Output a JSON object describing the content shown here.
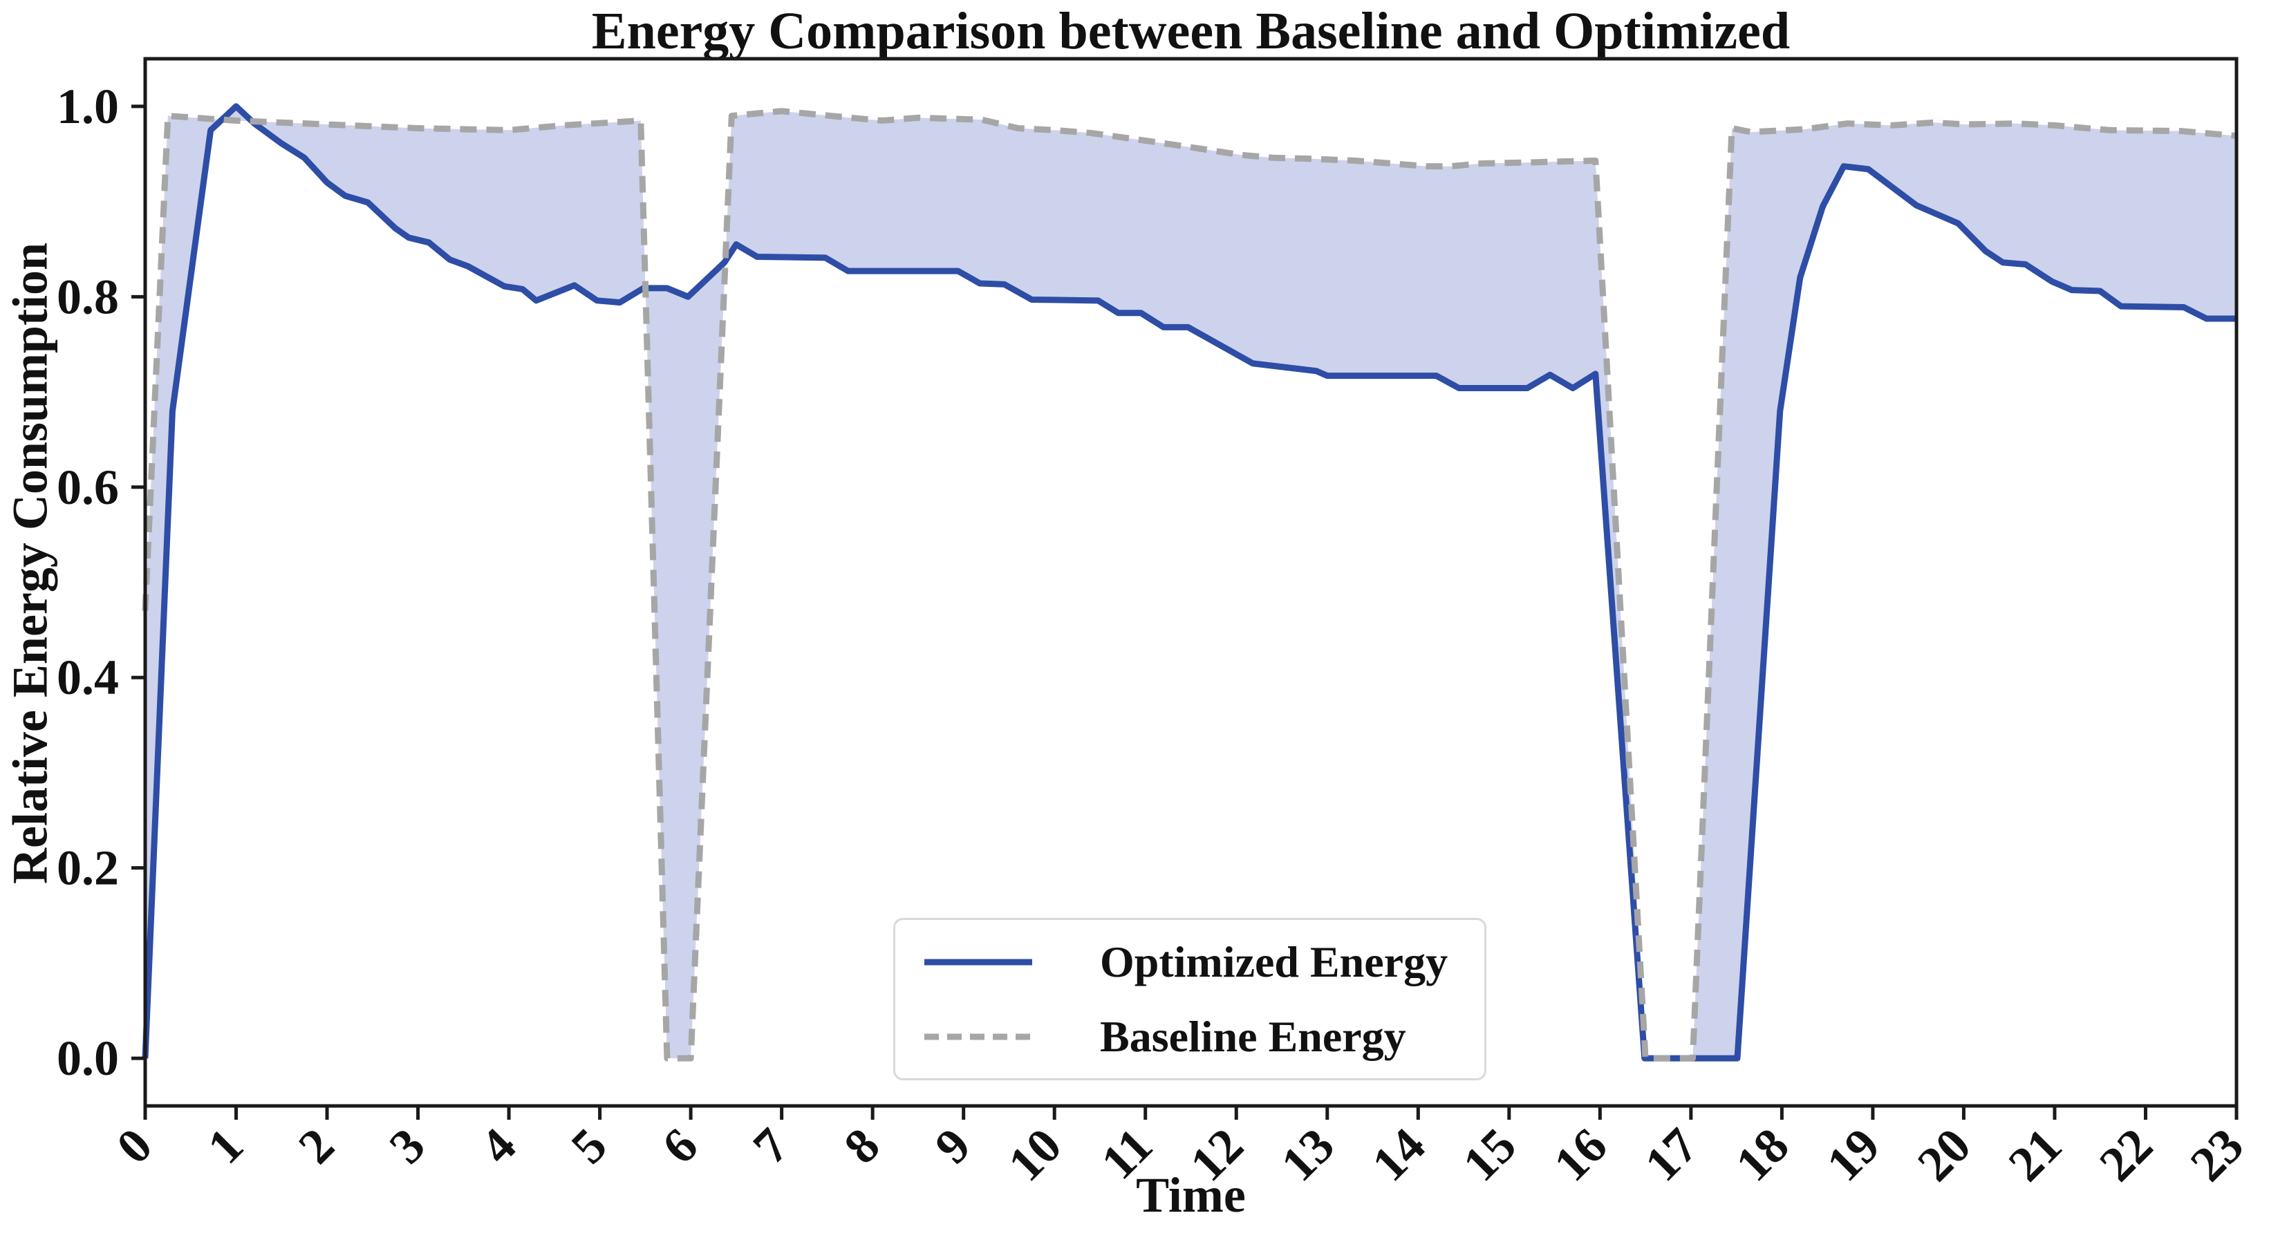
{
  "chart_data": {
    "type": "line",
    "title": "Energy Comparison between Baseline and Optimized",
    "xlabel": "Time",
    "ylabel": "Relative Energy Consumption",
    "xlim": [
      0,
      23
    ],
    "ylim": [
      -0.05,
      1.05
    ],
    "grid": false,
    "xticks": [
      0,
      1,
      2,
      3,
      4,
      5,
      6,
      7,
      8,
      9,
      10,
      11,
      12,
      13,
      14,
      15,
      16,
      17,
      18,
      19,
      20,
      21,
      22,
      23
    ],
    "xtick_labels": [
      "0",
      "1",
      "2",
      "3",
      "4",
      "5",
      "6",
      "7",
      "8",
      "9",
      "10",
      "11",
      "12",
      "13",
      "14",
      "15",
      "16",
      "17",
      "18",
      "19",
      "20",
      "21",
      "22",
      "23"
    ],
    "xtick_rotation_deg": 45,
    "yticks": [
      0.0,
      0.2,
      0.4,
      0.6,
      0.8,
      1.0
    ],
    "ytick_labels": [
      "0.0",
      "0.2",
      "0.4",
      "0.6",
      "0.8",
      "1.0"
    ],
    "legend_position": "lower center",
    "fill_between": {
      "between": [
        "Optimized Energy",
        "Baseline Energy"
      ],
      "color": "#cdd3ec"
    },
    "series": [
      {
        "name": "Optimized Energy",
        "style": "solid",
        "color": "#2e4da6",
        "points": [
          [
            0,
            0.0
          ],
          [
            0.3,
            0.68
          ],
          [
            0.72,
            0.975
          ],
          [
            1.0,
            1.0
          ],
          [
            1.2,
            0.982
          ],
          [
            1.5,
            0.961
          ],
          [
            1.75,
            0.946
          ],
          [
            2.0,
            0.92
          ],
          [
            2.2,
            0.906
          ],
          [
            2.45,
            0.899
          ],
          [
            2.75,
            0.872
          ],
          [
            2.9,
            0.862
          ],
          [
            3.12,
            0.857
          ],
          [
            3.35,
            0.839
          ],
          [
            3.55,
            0.832
          ],
          [
            3.95,
            0.811
          ],
          [
            4.15,
            0.808
          ],
          [
            4.3,
            0.796
          ],
          [
            4.72,
            0.812
          ],
          [
            4.97,
            0.796
          ],
          [
            5.22,
            0.794
          ],
          [
            5.48,
            0.809
          ],
          [
            5.74,
            0.809
          ],
          [
            5.97,
            0.8
          ],
          [
            6.37,
            0.836
          ],
          [
            6.5,
            0.855
          ],
          [
            6.73,
            0.842
          ],
          [
            7.48,
            0.841
          ],
          [
            7.73,
            0.827
          ],
          [
            8.94,
            0.827
          ],
          [
            9.18,
            0.814
          ],
          [
            9.45,
            0.813
          ],
          [
            9.75,
            0.797
          ],
          [
            10.48,
            0.796
          ],
          [
            10.7,
            0.783
          ],
          [
            10.95,
            0.783
          ],
          [
            11.2,
            0.768
          ],
          [
            11.47,
            0.768
          ],
          [
            12.18,
            0.73
          ],
          [
            12.88,
            0.722
          ],
          [
            13.0,
            0.717
          ],
          [
            14.2,
            0.717
          ],
          [
            14.45,
            0.704
          ],
          [
            15.2,
            0.704
          ],
          [
            15.45,
            0.718
          ],
          [
            15.7,
            0.704
          ],
          [
            15.95,
            0.719
          ],
          [
            16.49,
            0.0
          ],
          [
            17.51,
            0.0
          ],
          [
            17.98,
            0.68
          ],
          [
            18.2,
            0.82
          ],
          [
            18.45,
            0.895
          ],
          [
            18.68,
            0.937
          ],
          [
            18.95,
            0.934
          ],
          [
            19.48,
            0.896
          ],
          [
            19.94,
            0.877
          ],
          [
            20.24,
            0.848
          ],
          [
            20.43,
            0.836
          ],
          [
            20.68,
            0.834
          ],
          [
            20.97,
            0.816
          ],
          [
            21.19,
            0.807
          ],
          [
            21.5,
            0.806
          ],
          [
            21.73,
            0.79
          ],
          [
            22.42,
            0.789
          ],
          [
            22.67,
            0.777
          ],
          [
            23,
            0.777
          ]
        ]
      },
      {
        "name": "Baseline Energy",
        "style": "dashed",
        "color": "#a6a6a6",
        "points": [
          [
            0,
            0.47
          ],
          [
            0.25,
            0.99
          ],
          [
            1.0,
            0.985
          ],
          [
            2.0,
            0.981
          ],
          [
            3.0,
            0.977
          ],
          [
            4.0,
            0.975
          ],
          [
            4.6,
            0.98
          ],
          [
            5.45,
            0.985
          ],
          [
            5.74,
            0.0
          ],
          [
            6.0,
            0.0
          ],
          [
            6.45,
            0.99
          ],
          [
            7.0,
            0.995
          ],
          [
            7.65,
            0.989
          ],
          [
            8.1,
            0.985
          ],
          [
            8.5,
            0.988
          ],
          [
            9.2,
            0.986
          ],
          [
            9.6,
            0.977
          ],
          [
            10.0,
            0.975
          ],
          [
            10.4,
            0.972
          ],
          [
            11.0,
            0.964
          ],
          [
            11.5,
            0.957
          ],
          [
            12.05,
            0.949
          ],
          [
            12.4,
            0.946
          ],
          [
            12.8,
            0.945
          ],
          [
            13.3,
            0.943
          ],
          [
            14.1,
            0.937
          ],
          [
            14.35,
            0.937
          ],
          [
            14.7,
            0.94
          ],
          [
            15.2,
            0.941
          ],
          [
            15.95,
            0.943
          ],
          [
            16.5,
            0.0
          ],
          [
            17.02,
            0.0
          ],
          [
            17.45,
            0.977
          ],
          [
            17.66,
            0.973
          ],
          [
            18.26,
            0.976
          ],
          [
            18.72,
            0.982
          ],
          [
            19.21,
            0.98
          ],
          [
            19.67,
            0.983
          ],
          [
            20.02,
            0.981
          ],
          [
            20.56,
            0.982
          ],
          [
            21.0,
            0.98
          ],
          [
            21.6,
            0.975
          ],
          [
            22.4,
            0.974
          ],
          [
            23,
            0.969
          ]
        ]
      }
    ]
  },
  "legend": {
    "optimized_label": "Optimized Energy",
    "baseline_label": "Baseline Energy"
  },
  "colors": {
    "optimized_line": "#2e4da6",
    "baseline_line": "#a6a6a6",
    "band_fill": "#cdd3ec",
    "axis": "#1a1a1a",
    "legend_border": "#d9d9d9"
  }
}
